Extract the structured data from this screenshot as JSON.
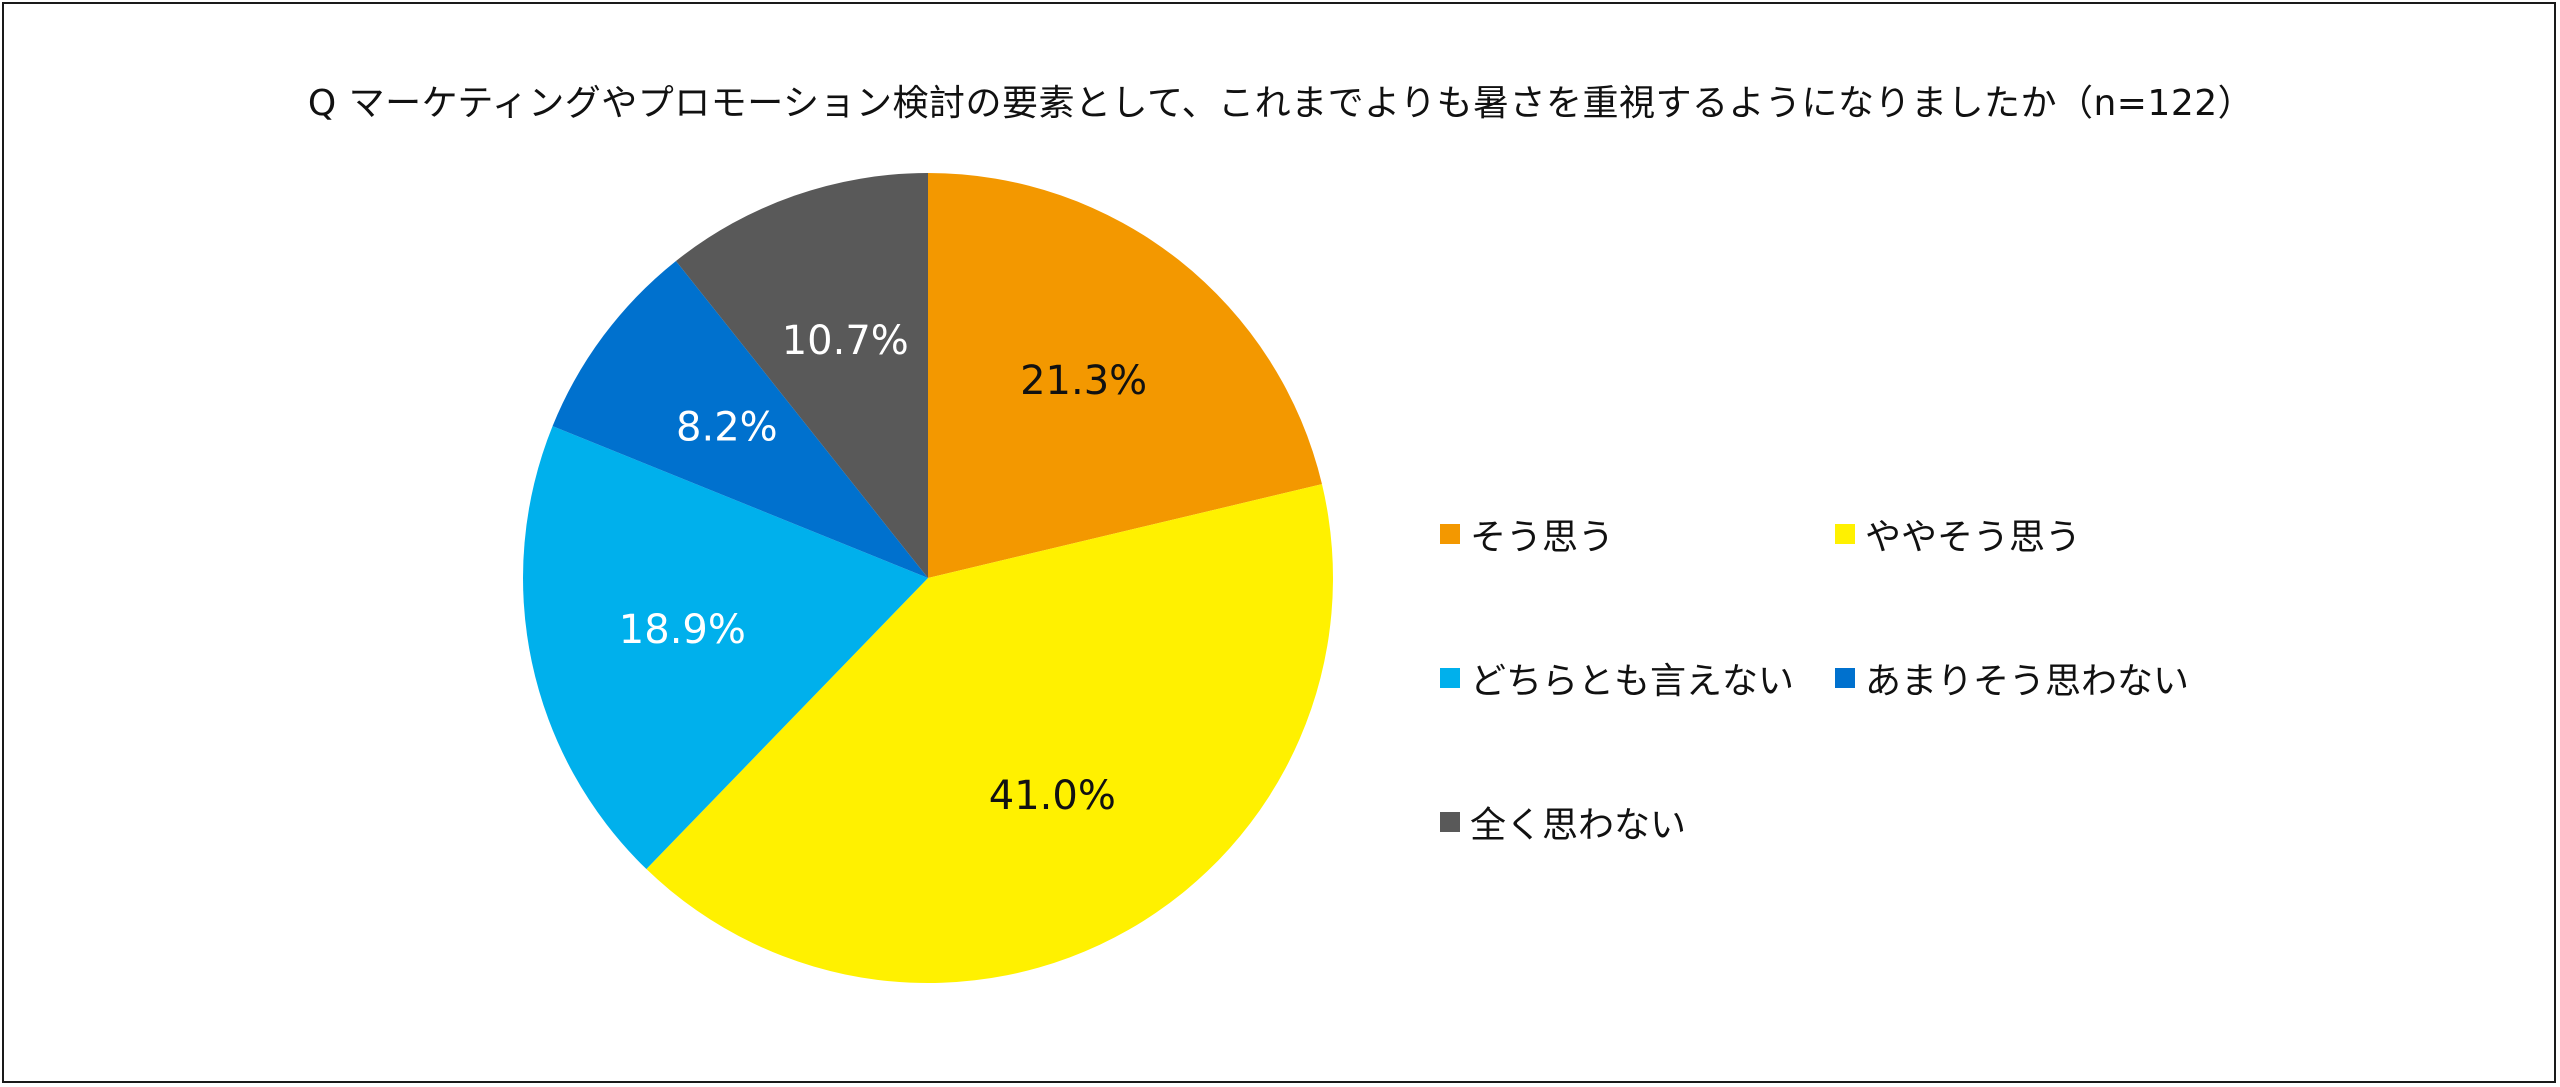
{
  "chart_data": {
    "type": "pie",
    "title": "Q マーケティングやプロモーション検討の要素として、これまでよりも暑さを重視するようになりましたか（n=122）",
    "slices": [
      {
        "name": "そう思う",
        "value": 21.3,
        "label": "21.3%",
        "color": "#F39800",
        "label_color": "#111111"
      },
      {
        "name": "ややそう思う",
        "value": 41.0,
        "label": "41.0%",
        "color": "#FFF100",
        "label_color": "#111111"
      },
      {
        "name": "どちらとも言えない",
        "value": 18.9,
        "label": "18.9%",
        "color": "#00B0EC",
        "label_color": "#ffffff"
      },
      {
        "name": "あまりそう思わない",
        "value": 8.2,
        "label": "8.2%",
        "color": "#0071CE",
        "label_color": "#ffffff"
      },
      {
        "name": "全く思わない",
        "value": 10.7,
        "label": "10.7%",
        "color": "#595959",
        "label_color": "#ffffff"
      }
    ],
    "start_angle": "12 o'clock",
    "direction": "clockwise",
    "legend_position": "right"
  }
}
